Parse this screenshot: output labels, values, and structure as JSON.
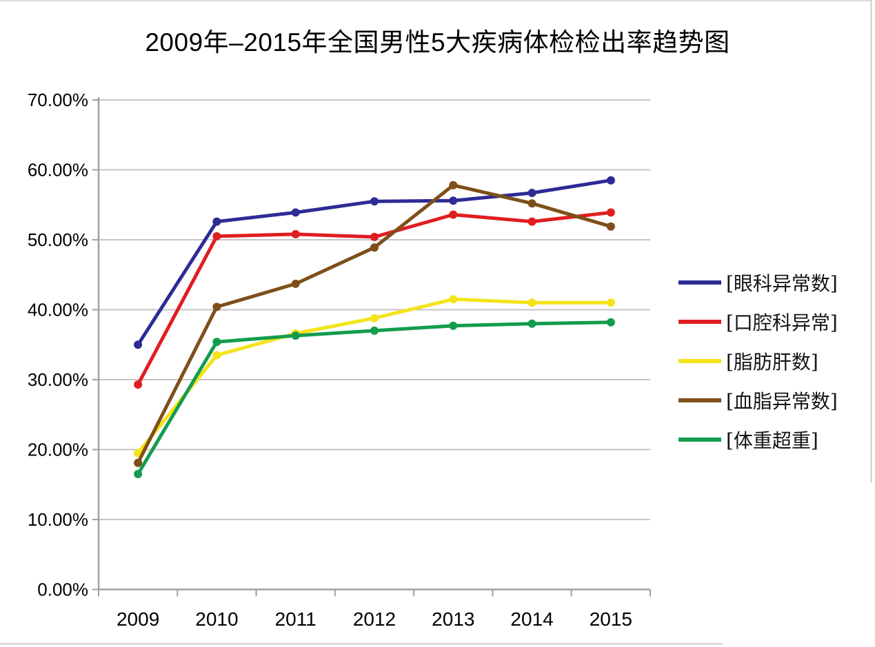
{
  "page": {
    "background": "#ffffff"
  },
  "chart_data": {
    "type": "line",
    "title": "2009年–2015年全国男性5大疾病体检检出率趋势图",
    "categories": [
      "2009",
      "2010",
      "2011",
      "2012",
      "2013",
      "2014",
      "2015"
    ],
    "series": [
      {
        "name": "[眼科异常数]",
        "color": "#2D2B96",
        "values": [
          35.0,
          52.6,
          53.9,
          55.5,
          55.6,
          56.7,
          58.5
        ]
      },
      {
        "name": "[口腔科异常]",
        "color": "#E01D20",
        "values": [
          29.3,
          50.5,
          50.8,
          50.4,
          53.6,
          52.6,
          53.9
        ]
      },
      {
        "name": "[脂肪肝数]",
        "color": "#F4E319",
        "values": [
          19.5,
          33.5,
          36.6,
          38.8,
          41.5,
          41.0,
          41.0
        ]
      },
      {
        "name": "[血脂异常数]",
        "color": "#7E4F1A",
        "values": [
          18.1,
          40.4,
          43.7,
          48.9,
          57.8,
          55.2,
          51.9
        ]
      },
      {
        "name": "[体重超重]",
        "color": "#149C4E",
        "values": [
          16.5,
          35.4,
          36.3,
          37.0,
          37.7,
          38.0,
          38.2
        ]
      }
    ],
    "xlabel": "",
    "ylabel": "",
    "ylim": [
      0,
      70
    ],
    "y_tick_step": 10,
    "y_tick_labels": [
      "0.00%",
      "10.00%",
      "20.00%",
      "30.00%",
      "40.00%",
      "50.00%",
      "60.00%",
      "70.00%"
    ],
    "grid": "horizontal",
    "gridline_color": "#c6c6c6",
    "axis_color": "#a0a0a0",
    "legend_position": "right",
    "marker": "circle"
  }
}
